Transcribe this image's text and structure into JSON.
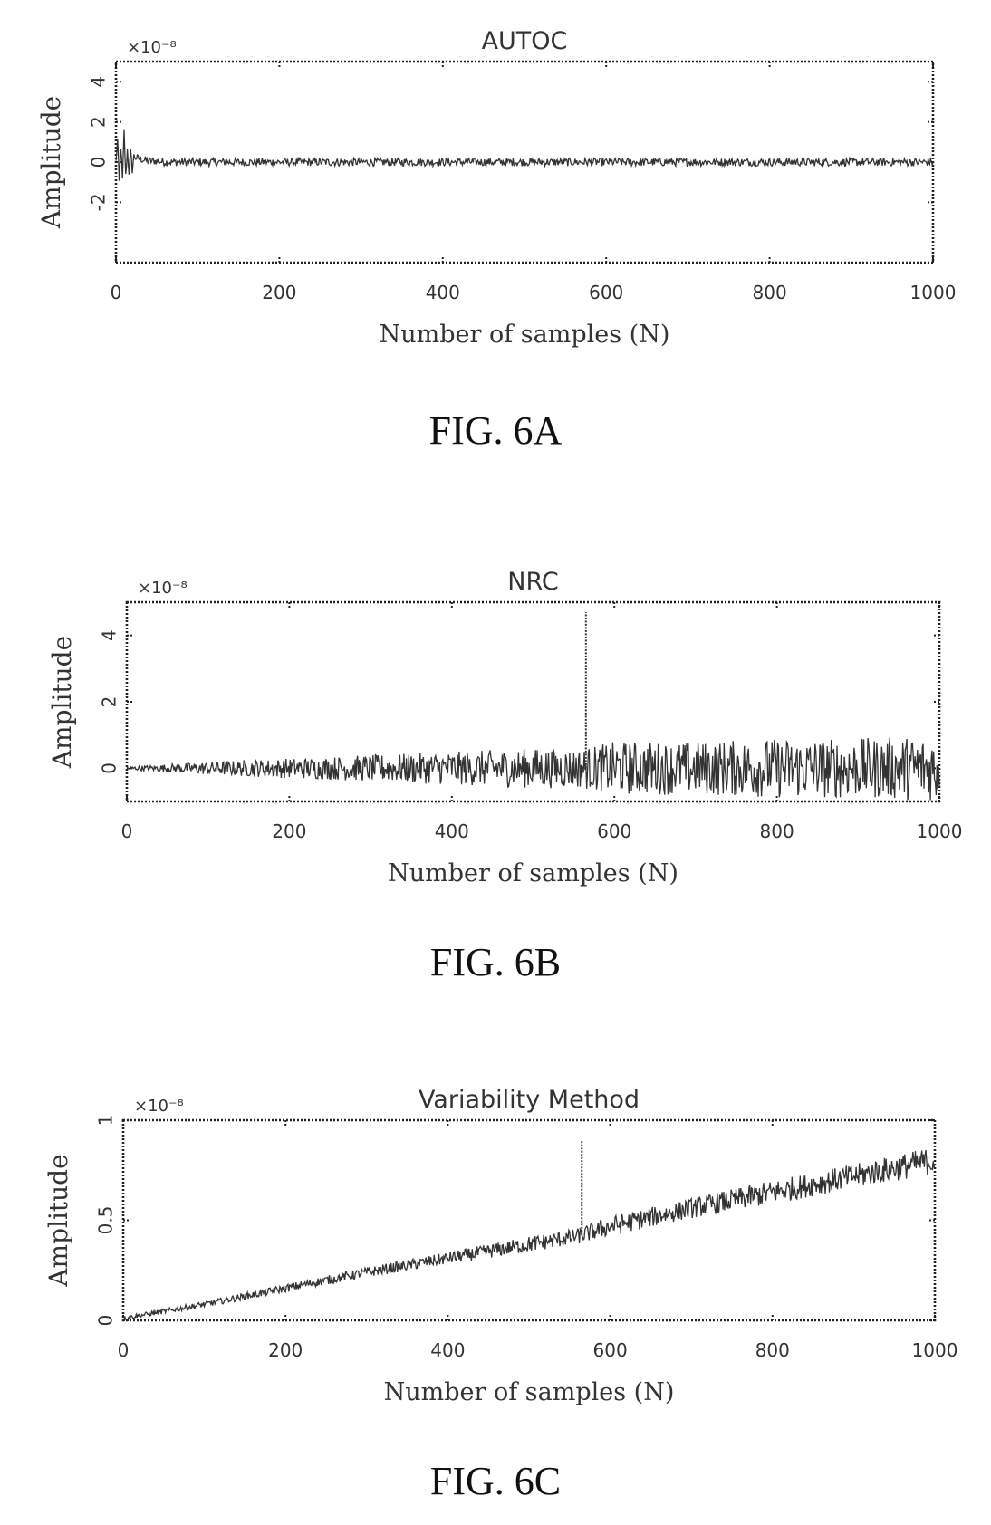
{
  "chart_data": [
    {
      "type": "line",
      "title": "AUTOC",
      "xlabel": "Number of samples (N)",
      "ylabel": "Amplitude",
      "y_exponent_label": "×10⁻⁸",
      "xlim": [
        0,
        1000
      ],
      "ylim": [
        -5,
        5
      ],
      "xticks": [
        0,
        200,
        400,
        600,
        800,
        1000
      ],
      "yticks": [
        -2,
        0,
        2,
        4
      ],
      "grid": false,
      "spikes": [],
      "series": [
        {
          "x": [
            0,
            2,
            4,
            6,
            8,
            10,
            12,
            14,
            16,
            18,
            20,
            22,
            25,
            30,
            35,
            40,
            50,
            60,
            80,
            100,
            150,
            200,
            250,
            300,
            350,
            400,
            450,
            500,
            550,
            600,
            650,
            700,
            750,
            800,
            850,
            900,
            950,
            1000
          ],
          "y": [
            0,
            1.1,
            -1.0,
            0.8,
            -0.9,
            1.5,
            -0.7,
            0.6,
            -0.5,
            0.5,
            -0.4,
            0.3,
            0.2,
            0.15,
            0.1,
            0.05,
            0.05,
            0,
            0,
            0,
            0,
            0,
            0,
            0,
            0,
            0,
            0,
            0,
            0,
            0,
            0,
            0,
            0,
            0,
            0,
            0,
            0,
            0
          ],
          "noise_amplitude": 0.2
        }
      ]
    },
    {
      "type": "line",
      "title": "NRC",
      "xlabel": "Number of samples (N)",
      "ylabel": "Amplitude",
      "y_exponent_label": "×10⁻⁸",
      "xlim": [
        0,
        1000
      ],
      "ylim": [
        -1,
        5
      ],
      "xticks": [
        0,
        200,
        400,
        600,
        800,
        1000
      ],
      "yticks": [
        0,
        2,
        4
      ],
      "grid": false,
      "spikes": [
        {
          "x": 565,
          "y": 4.7
        }
      ],
      "series": [
        {
          "x": [
            0,
            100,
            200,
            300,
            400,
            500,
            560,
            600,
            700,
            800,
            900,
            1000
          ],
          "y": [
            0,
            0,
            0,
            0,
            0,
            0,
            0,
            0,
            0,
            0,
            0,
            0
          ],
          "noise_amplitude": [
            0.05,
            0.2,
            0.3,
            0.4,
            0.5,
            0.6,
            0.6,
            0.8,
            0.8,
            0.9,
            0.9,
            1.0
          ]
        }
      ]
    },
    {
      "type": "line",
      "title": "Variability Method",
      "xlabel": "Number of samples (N)",
      "ylabel": "Amplitude",
      "y_exponent_label": "×10⁻⁸",
      "xlim": [
        0,
        1000
      ],
      "ylim": [
        0,
        1
      ],
      "xticks": [
        0,
        200,
        400,
        600,
        800,
        1000
      ],
      "yticks": [
        0,
        0.5,
        1
      ],
      "grid": false,
      "spikes": [
        {
          "x": 565,
          "y": 0.9
        }
      ],
      "series": [
        {
          "x": [
            0,
            100,
            200,
            300,
            400,
            500,
            560,
            600,
            700,
            800,
            900,
            1000
          ],
          "y": [
            0.01,
            0.08,
            0.16,
            0.24,
            0.31,
            0.38,
            0.42,
            0.47,
            0.56,
            0.64,
            0.72,
            0.8
          ],
          "noise_amplitude": [
            0.01,
            0.015,
            0.02,
            0.025,
            0.03,
            0.04,
            0.04,
            0.05,
            0.05,
            0.06,
            0.06,
            0.07
          ]
        }
      ]
    }
  ],
  "captions": [
    "FIG. 6A",
    "FIG. 6B",
    "FIG. 6C"
  ]
}
